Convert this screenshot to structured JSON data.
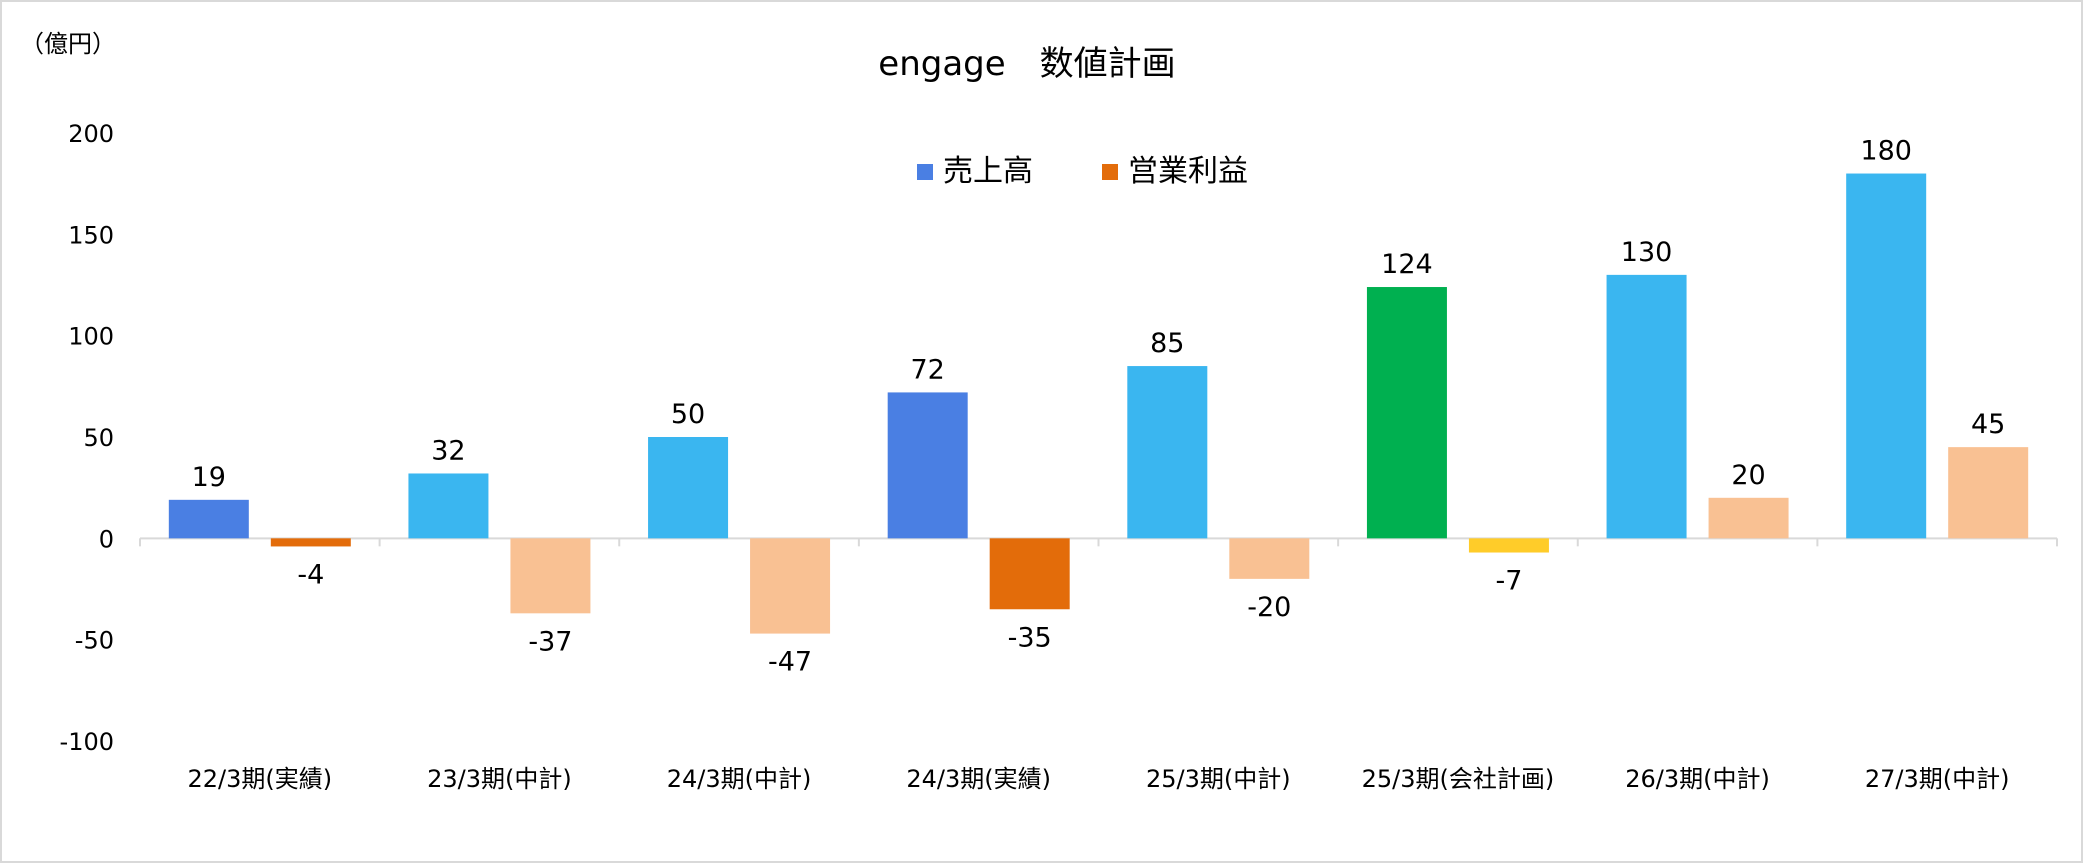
{
  "chart_data": {
    "type": "bar",
    "title": "engage　数値計画",
    "unit_label": "（億円）",
    "categories": [
      "22/3期(実績)",
      "23/3期(中計)",
      "24/3期(中計)",
      "24/3期(実績)",
      "25/3期(中計)",
      "25/3期(会社計画)",
      "26/3期(中計)",
      "27/3期(中計)"
    ],
    "series": [
      {
        "name": "売上高",
        "legend_color": "#4a7fe3",
        "values": [
          19,
          32,
          50,
          72,
          85,
          124,
          130,
          180
        ],
        "labels": [
          "19",
          "32",
          "50",
          "72",
          "85",
          "124",
          "130",
          "180"
        ],
        "colors": [
          "#4a7fe3",
          "#3ab6f0",
          "#3ab6f0",
          "#4a7fe3",
          "#3ab6f0",
          "#00b050",
          "#3ab6f0",
          "#3ab6f0"
        ]
      },
      {
        "name": "営業利益",
        "legend_color": "#e36c0a",
        "values": [
          -4,
          -37,
          -47,
          -35,
          -20,
          -7,
          20,
          45
        ],
        "labels": [
          "-4",
          "-37",
          "-47",
          "-35",
          "-20",
          "-7",
          "20",
          "45"
        ],
        "colors": [
          "#e36c0a",
          "#f9c193",
          "#f9c193",
          "#e36c0a",
          "#f9c193",
          "#ffcc29",
          "#f9c193",
          "#f9c193"
        ]
      }
    ],
    "ylim": [
      -100,
      200
    ],
    "yticks": [
      -100,
      -50,
      0,
      50,
      100,
      150,
      200
    ],
    "ytick_labels": [
      "-100",
      "-50",
      "0",
      "50",
      "100",
      "150",
      "200"
    ],
    "legend_position": "top-center",
    "grid": false
  }
}
